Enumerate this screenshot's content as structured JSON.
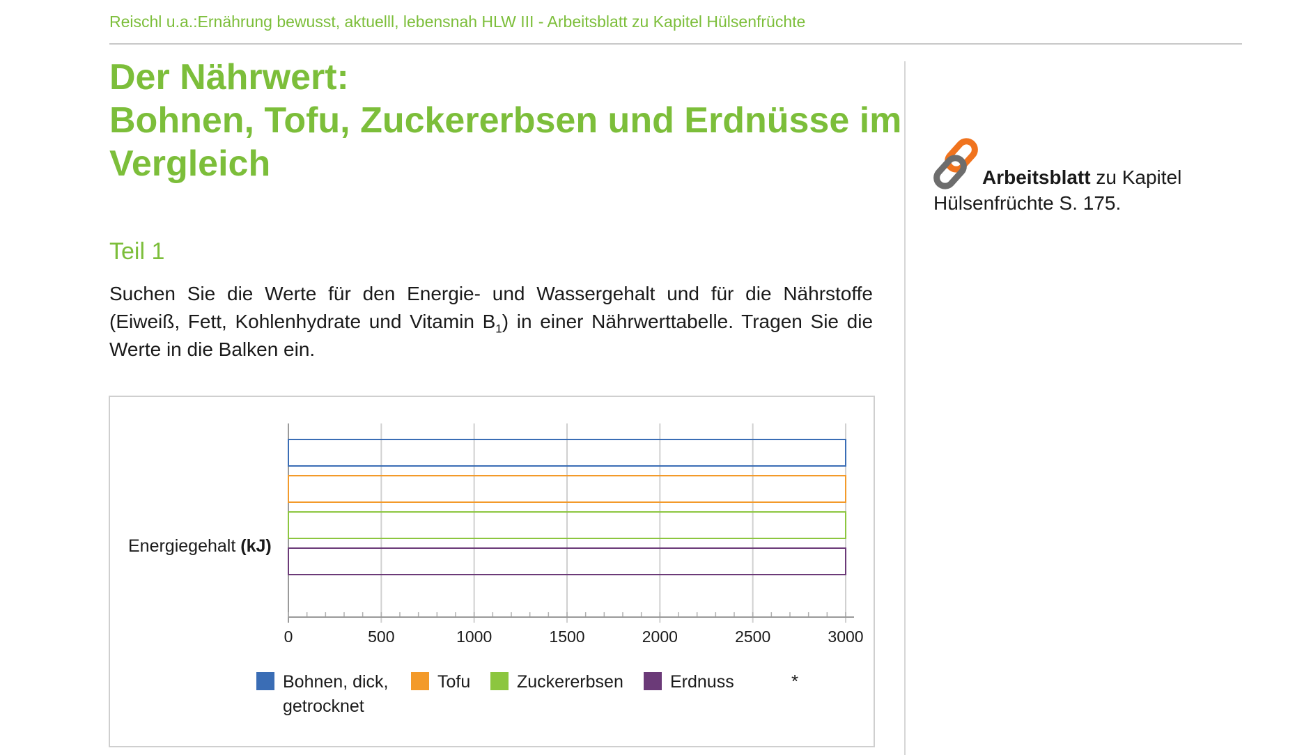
{
  "header": {
    "running_title": "Reischl u.a.:Ernährung bewusst, aktuelll, lebensnah HLW III - Arbeitsblatt zu Kapitel Hülsenfrüchte"
  },
  "title": {
    "line1": "Der Nährwert:",
    "line2": "Bohnen, Tofu, Zuckererbsen und Erdnüsse im",
    "line3": "Vergleich"
  },
  "section": {
    "heading": "Teil 1"
  },
  "instructions": {
    "part1": "Suchen Sie die Werte für den Energie- und Wassergehalt und für die Nährstoffe (Eiweiß, Fett, Kohlenhydrate und Vitamin B",
    "subscript": "1",
    "part2": ") in einer Nährwerttabelle. Tragen Sie die Werte in die Balken ein."
  },
  "sidebar": {
    "link_icon": "chain-link-icon",
    "bold_text": "Arbeitsblatt",
    "text_rest": " zu Kapitel",
    "line2": "Hülsenfrüchte S. 175."
  },
  "chart_data": {
    "type": "bar",
    "orientation": "horizontal",
    "category_label_main": "Energiegehalt",
    "category_label_unit": "(kJ)",
    "xlim": [
      0,
      3000
    ],
    "x_ticks": [
      "0",
      "500",
      "1000",
      "1500",
      "2000",
      "2500",
      "3000"
    ],
    "grid": true,
    "series": [
      {
        "name": "Bohnen, dick,",
        "name_line2": "getrocknet",
        "value": 3000,
        "color": "#3a6db5"
      },
      {
        "name": "Tofu",
        "value": 3000,
        "color": "#f39a2a"
      },
      {
        "name": "Zuckererbsen",
        "value": 3000,
        "color": "#8cc63f"
      },
      {
        "name": "Erdnuss",
        "value": 3000,
        "color": "#6b3a78"
      }
    ],
    "legend_extra": "*",
    "legend_position": "bottom"
  }
}
